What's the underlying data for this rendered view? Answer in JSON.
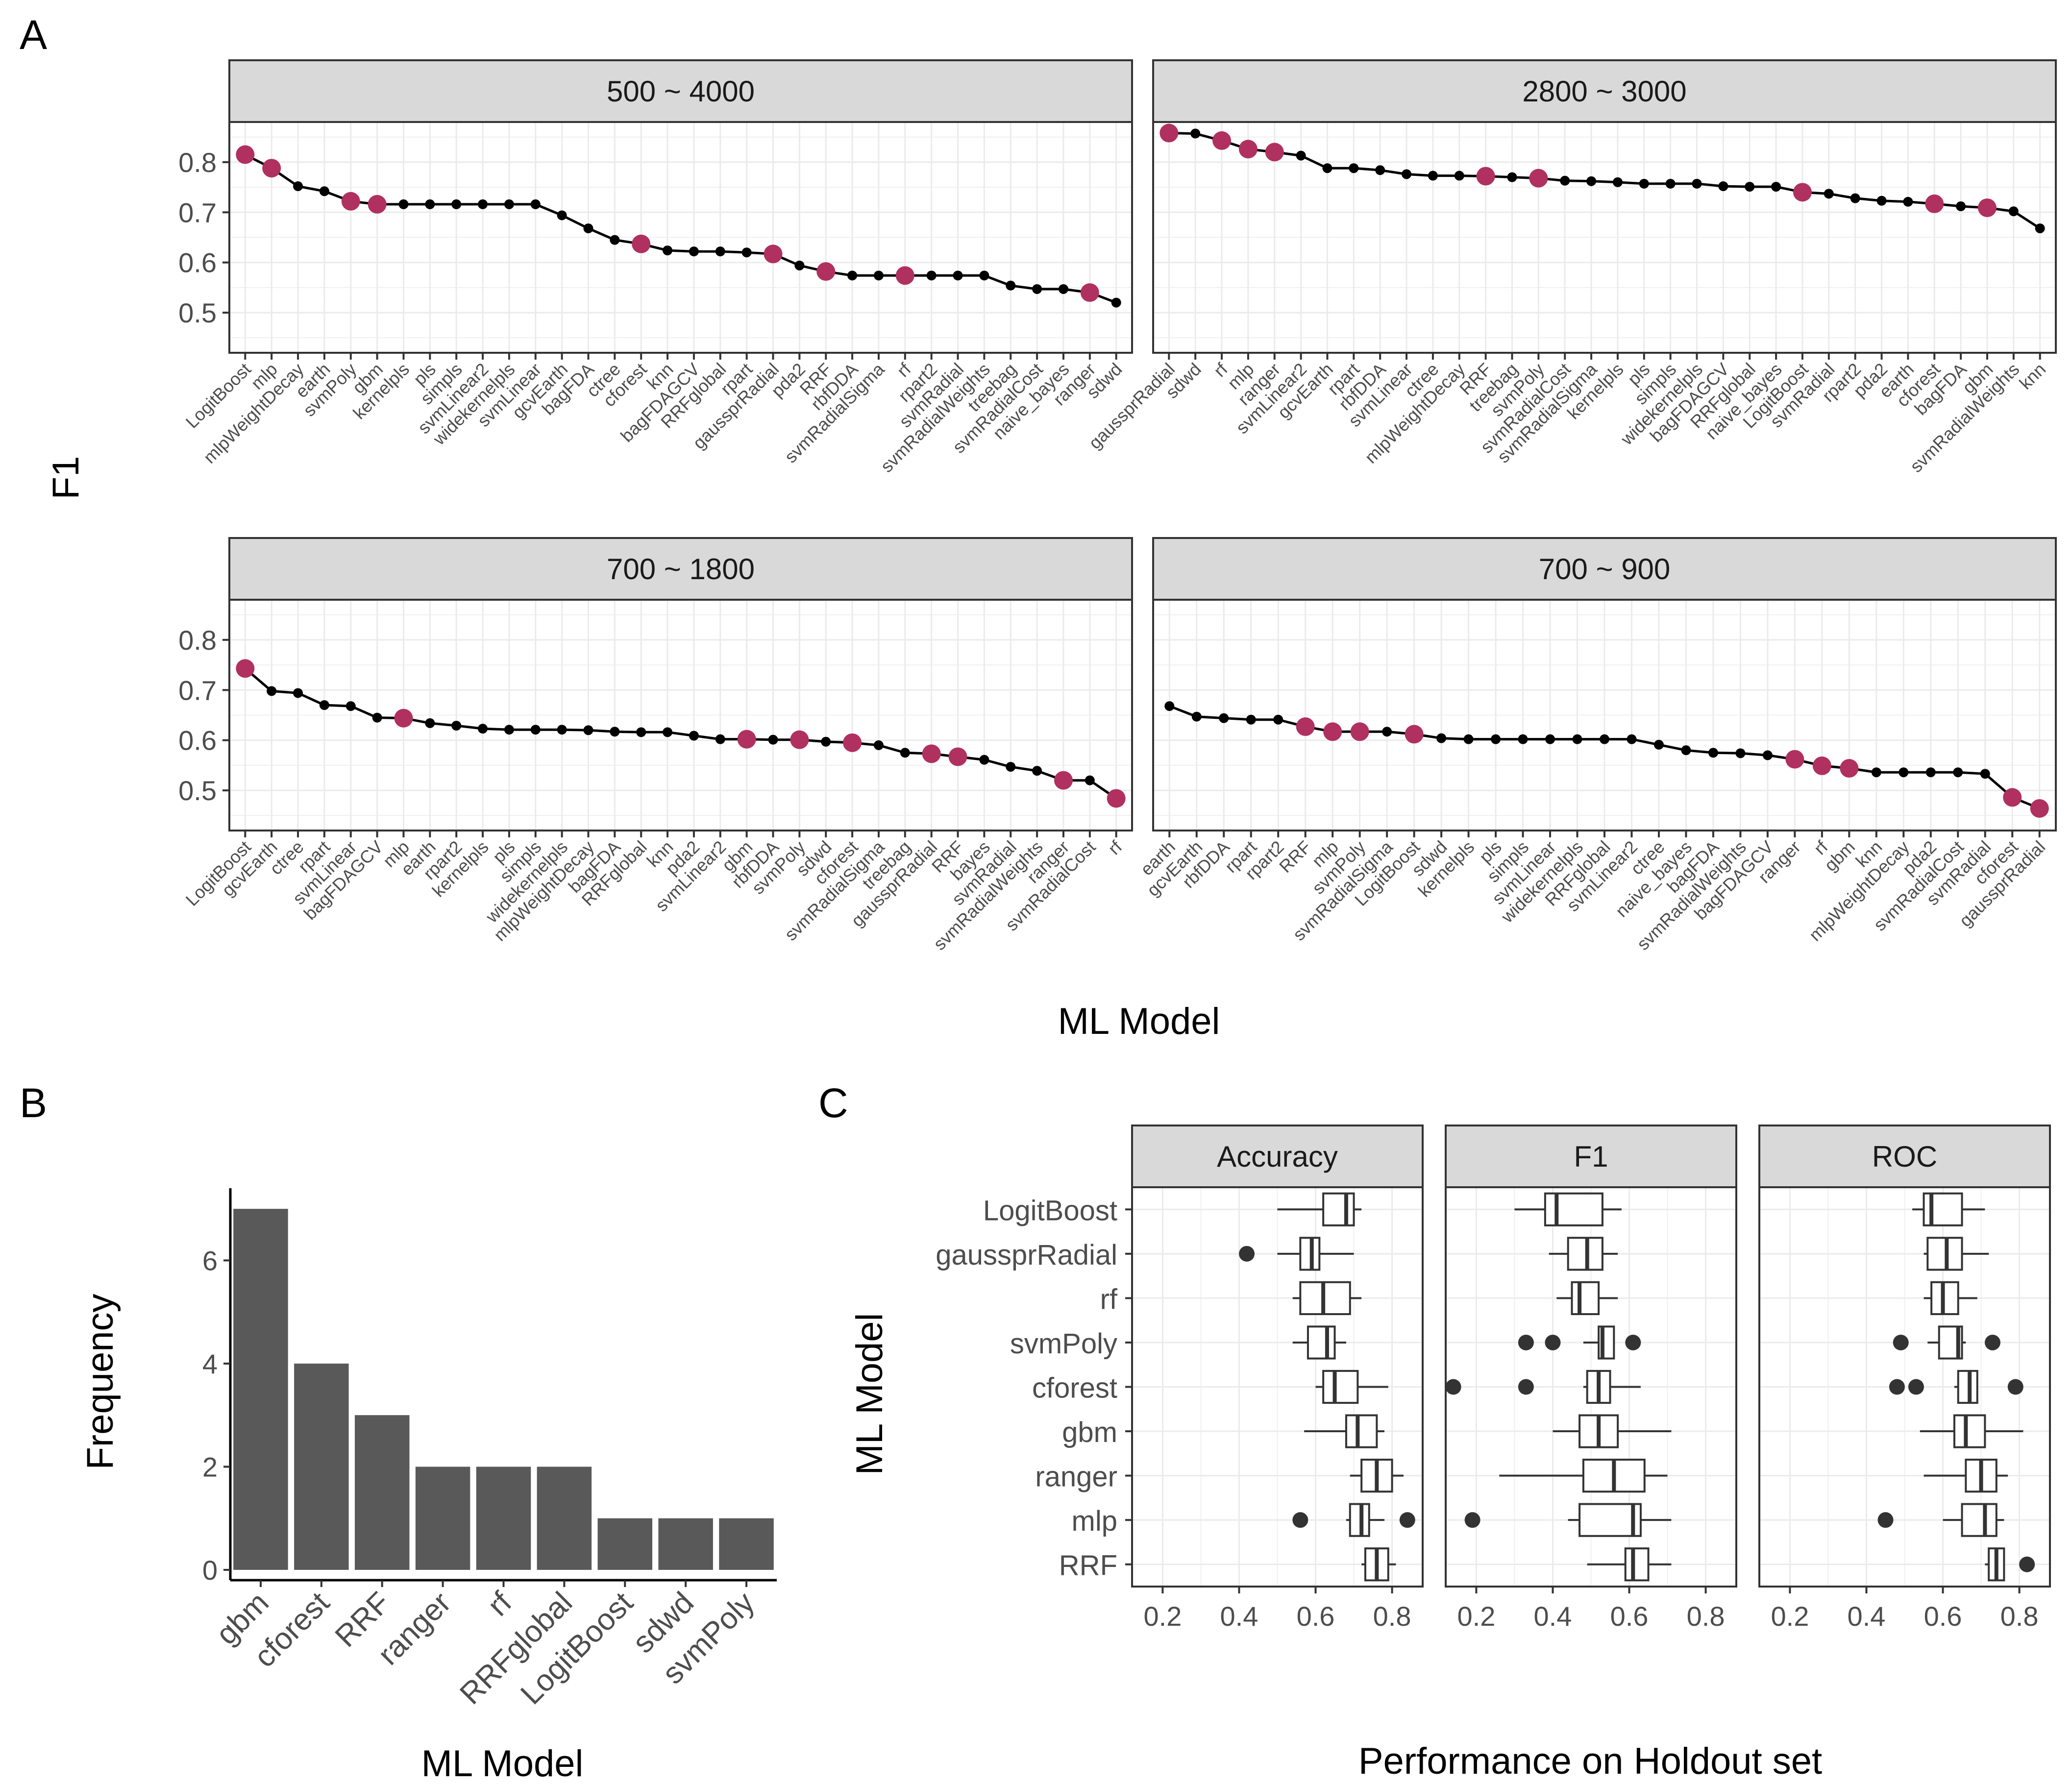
{
  "figure": {
    "panel_letters": [
      "A",
      "B",
      "C"
    ]
  },
  "chart_data": [
    {
      "id": "A",
      "type": "line",
      "ylabel": "F1",
      "xlabel": "ML Model",
      "ylim": [
        0.42,
        0.88
      ],
      "yticks": [
        0.5,
        0.6,
        0.7,
        0.8
      ],
      "highlight_color": "#B03060",
      "point_color": "#000000",
      "facets": [
        {
          "title": "500 ~ 4000",
          "models": [
            "LogitBoost",
            "mlp",
            "mlpWeightDecay",
            "earth",
            "svmPoly",
            "gbm",
            "kernelpls",
            "pls",
            "simpls",
            "svmLinear2",
            "widekernelpls",
            "svmLinear",
            "gcvEarth",
            "bagFDA",
            "ctree",
            "cforest",
            "knn",
            "bagFDAGCV",
            "RRFglobal",
            "rpart",
            "gaussprRadial",
            "pda2",
            "RRF",
            "rbfDDA",
            "svmRadialSigma",
            "rf",
            "rpart2",
            "svmRadial",
            "svmRadialWeights",
            "treebag",
            "svmRadialCost",
            "naive_bayes",
            "ranger",
            "sdwd"
          ],
          "values": [
            0.815,
            0.788,
            0.752,
            0.742,
            0.722,
            0.716,
            0.716,
            0.716,
            0.716,
            0.716,
            0.716,
            0.716,
            0.694,
            0.668,
            0.645,
            0.637,
            0.624,
            0.622,
            0.622,
            0.62,
            0.617,
            0.594,
            0.582,
            0.574,
            0.574,
            0.574,
            0.574,
            0.574,
            0.574,
            0.554,
            0.547,
            0.547,
            0.54,
            0.52
          ],
          "highlight": [
            true,
            true,
            false,
            false,
            true,
            true,
            false,
            false,
            false,
            false,
            false,
            false,
            false,
            false,
            false,
            true,
            false,
            false,
            false,
            false,
            true,
            false,
            true,
            false,
            false,
            true,
            false,
            false,
            false,
            false,
            false,
            false,
            true,
            false
          ]
        },
        {
          "title": "2800 ~ 3000",
          "models": [
            "gaussprRadial",
            "sdwd",
            "rf",
            "mlp",
            "ranger",
            "svmLinear2",
            "gcvEarth",
            "rpart",
            "rbfDDA",
            "svmLinear",
            "ctree",
            "mlpWeightDecay",
            "RRF",
            "treebag",
            "svmPoly",
            "svmRadialCost",
            "svmRadialSigma",
            "kernelpls",
            "pls",
            "simpls",
            "widekernelpls",
            "bagFDAGCV",
            "RRFglobal",
            "naive_bayes",
            "LogitBoost",
            "svmRadial",
            "rpart2",
            "pda2",
            "earth",
            "cforest",
            "bagFDA",
            "gbm",
            "svmRadialWeights",
            "knn"
          ],
          "values": [
            0.858,
            0.857,
            0.843,
            0.826,
            0.82,
            0.813,
            0.788,
            0.788,
            0.784,
            0.776,
            0.773,
            0.773,
            0.772,
            0.77,
            0.768,
            0.763,
            0.762,
            0.76,
            0.757,
            0.757,
            0.757,
            0.752,
            0.751,
            0.751,
            0.74,
            0.737,
            0.728,
            0.723,
            0.721,
            0.717,
            0.712,
            0.709,
            0.702,
            0.668
          ],
          "highlight": [
            true,
            false,
            true,
            true,
            true,
            false,
            false,
            false,
            false,
            false,
            false,
            false,
            true,
            false,
            true,
            false,
            false,
            false,
            false,
            false,
            false,
            false,
            false,
            false,
            true,
            false,
            false,
            false,
            false,
            true,
            false,
            true,
            false,
            false
          ]
        },
        {
          "title": "700 ~ 1800",
          "models": [
            "LogitBoost",
            "gcvEarth",
            "ctree",
            "rpart",
            "svmLinear",
            "bagFDAGCV",
            "mlp",
            "earth",
            "rpart2",
            "kernelpls",
            "pls",
            "simpls",
            "widekernelpls",
            "mlpWeightDecay",
            "bagFDA",
            "RRFglobal",
            "knn",
            "pda2",
            "svmLinear2",
            "gbm",
            "rbfDDA",
            "svmPoly",
            "sdwd",
            "cforest",
            "svmRadialSigma",
            "treebag",
            "gaussprRadial",
            "RRF",
            "bayes",
            "svmRadial",
            "svmRadialWeights",
            "ranger",
            "svmRadialCost",
            "rf"
          ],
          "values": [
            0.743,
            0.698,
            0.694,
            0.67,
            0.668,
            0.645,
            0.644,
            0.634,
            0.629,
            0.623,
            0.621,
            0.621,
            0.621,
            0.62,
            0.617,
            0.616,
            0.616,
            0.609,
            0.602,
            0.602,
            0.601,
            0.601,
            0.597,
            0.595,
            0.59,
            0.575,
            0.573,
            0.567,
            0.561,
            0.547,
            0.539,
            0.52,
            0.52,
            0.484
          ],
          "highlight": [
            true,
            false,
            false,
            false,
            false,
            false,
            true,
            false,
            false,
            false,
            false,
            false,
            false,
            false,
            false,
            false,
            false,
            false,
            false,
            true,
            false,
            true,
            false,
            true,
            false,
            false,
            true,
            true,
            false,
            false,
            false,
            true,
            false,
            true
          ]
        },
        {
          "title": "700 ~ 900",
          "models": [
            "earth",
            "gcvEarth",
            "rbfDDA",
            "rpart",
            "rpart2",
            "RRF",
            "mlp",
            "svmPoly",
            "svmRadialSigma",
            "LogitBoost",
            "sdwd",
            "kernelpls",
            "pls",
            "simpls",
            "svmLinear",
            "widekernelpls",
            "RRFglobal",
            "svmLinear2",
            "ctree",
            "naive_bayes",
            "bagFDA",
            "svmRadialWeights",
            "bagFDAGCV",
            "ranger",
            "rf",
            "gbm",
            "knn",
            "mlpWeightDecay",
            "pda2",
            "svmRadialCost",
            "svmRadial",
            "cforest",
            "gaussprRadial"
          ],
          "values": [
            0.668,
            0.647,
            0.644,
            0.641,
            0.641,
            0.627,
            0.617,
            0.617,
            0.617,
            0.612,
            0.604,
            0.602,
            0.602,
            0.602,
            0.602,
            0.602,
            0.602,
            0.602,
            0.591,
            0.58,
            0.575,
            0.574,
            0.57,
            0.562,
            0.549,
            0.544,
            0.536,
            0.536,
            0.536,
            0.536,
            0.533,
            0.486,
            0.464
          ],
          "highlight": [
            false,
            false,
            false,
            false,
            false,
            true,
            true,
            true,
            false,
            true,
            false,
            false,
            false,
            false,
            false,
            false,
            false,
            false,
            false,
            false,
            false,
            false,
            false,
            true,
            true,
            true,
            false,
            false,
            false,
            false,
            false,
            true,
            true
          ]
        }
      ]
    },
    {
      "id": "B",
      "type": "bar",
      "xlabel": "ML Model",
      "ylabel": "Frequency",
      "categories": [
        "gbm",
        "cforest",
        "RRF",
        "ranger",
        "rf",
        "RRFglobal",
        "LogitBoost",
        "sdwd",
        "svmPoly"
      ],
      "values": [
        7,
        4,
        3,
        2,
        2,
        2,
        1,
        1,
        1
      ],
      "ylim": [
        -0.2,
        7.4
      ],
      "yticks": [
        0,
        2,
        4,
        6
      ],
      "bar_color": "#595959"
    },
    {
      "id": "C",
      "type": "box",
      "xlabel": "Performance on Holdout set",
      "ylabel": "ML Model",
      "categories": [
        "LogitBoost",
        "gaussprRadial",
        "rf",
        "svmPoly",
        "cforest",
        "gbm",
        "ranger",
        "mlp",
        "RRF"
      ],
      "xlim": [
        0.12,
        0.88
      ],
      "xticks": [
        0.2,
        0.4,
        0.6,
        0.8
      ],
      "xtick_labels": [
        "0.2",
        "0.4",
        "0.6",
        "0.8"
      ],
      "facets": [
        {
          "title": "Accuracy",
          "boxes": [
            {
              "min": 0.5,
              "q1": 0.62,
              "median": 0.68,
              "q3": 0.7,
              "max": 0.72,
              "outliers": []
            },
            {
              "min": 0.5,
              "q1": 0.56,
              "median": 0.59,
              "q3": 0.61,
              "max": 0.7,
              "outliers": [
                0.42
              ]
            },
            {
              "min": 0.54,
              "q1": 0.56,
              "median": 0.62,
              "q3": 0.69,
              "max": 0.72,
              "outliers": []
            },
            {
              "min": 0.54,
              "q1": 0.58,
              "median": 0.63,
              "q3": 0.65,
              "max": 0.68,
              "outliers": []
            },
            {
              "min": 0.6,
              "q1": 0.62,
              "median": 0.65,
              "q3": 0.71,
              "max": 0.79,
              "outliers": []
            },
            {
              "min": 0.57,
              "q1": 0.68,
              "median": 0.71,
              "q3": 0.76,
              "max": 0.78,
              "outliers": []
            },
            {
              "min": 0.69,
              "q1": 0.72,
              "median": 0.76,
              "q3": 0.8,
              "max": 0.83,
              "outliers": []
            },
            {
              "min": 0.68,
              "q1": 0.69,
              "median": 0.72,
              "q3": 0.74,
              "max": 0.78,
              "outliers": [
                0.56,
                0.84
              ]
            },
            {
              "min": 0.72,
              "q1": 0.73,
              "median": 0.76,
              "q3": 0.79,
              "max": 0.81,
              "outliers": []
            }
          ]
        },
        {
          "title": "F1",
          "boxes": [
            {
              "min": 0.3,
              "q1": 0.38,
              "median": 0.41,
              "q3": 0.53,
              "max": 0.58,
              "outliers": []
            },
            {
              "min": 0.39,
              "q1": 0.44,
              "median": 0.49,
              "q3": 0.53,
              "max": 0.57,
              "outliers": []
            },
            {
              "min": 0.41,
              "q1": 0.45,
              "median": 0.47,
              "q3": 0.52,
              "max": 0.57,
              "outliers": []
            },
            {
              "min": 0.48,
              "q1": 0.52,
              "median": 0.53,
              "q3": 0.56,
              "max": 0.56,
              "outliers": [
                0.33,
                0.4,
                0.61
              ]
            },
            {
              "min": 0.48,
              "q1": 0.49,
              "median": 0.52,
              "q3": 0.55,
              "max": 0.63,
              "outliers": [
                0.14,
                0.33
              ]
            },
            {
              "min": 0.4,
              "q1": 0.47,
              "median": 0.52,
              "q3": 0.57,
              "max": 0.71,
              "outliers": []
            },
            {
              "min": 0.26,
              "q1": 0.48,
              "median": 0.56,
              "q3": 0.64,
              "max": 0.7,
              "outliers": []
            },
            {
              "min": 0.44,
              "q1": 0.47,
              "median": 0.61,
              "q3": 0.63,
              "max": 0.71,
              "outliers": [
                0.19
              ]
            },
            {
              "min": 0.49,
              "q1": 0.59,
              "median": 0.61,
              "q3": 0.65,
              "max": 0.71,
              "outliers": []
            }
          ]
        },
        {
          "title": "ROC",
          "boxes": [
            {
              "min": 0.52,
              "q1": 0.55,
              "median": 0.57,
              "q3": 0.65,
              "max": 0.71,
              "outliers": []
            },
            {
              "min": 0.55,
              "q1": 0.56,
              "median": 0.61,
              "q3": 0.65,
              "max": 0.72,
              "outliers": []
            },
            {
              "min": 0.55,
              "q1": 0.57,
              "median": 0.6,
              "q3": 0.64,
              "max": 0.69,
              "outliers": []
            },
            {
              "min": 0.56,
              "q1": 0.59,
              "median": 0.64,
              "q3": 0.65,
              "max": 0.66,
              "outliers": [
                0.49,
                0.73
              ]
            },
            {
              "min": 0.63,
              "q1": 0.64,
              "median": 0.67,
              "q3": 0.69,
              "max": 0.69,
              "outliers": [
                0.48,
                0.53,
                0.79
              ]
            },
            {
              "min": 0.54,
              "q1": 0.63,
              "median": 0.66,
              "q3": 0.71,
              "max": 0.81,
              "outliers": []
            },
            {
              "min": 0.55,
              "q1": 0.66,
              "median": 0.7,
              "q3": 0.74,
              "max": 0.77,
              "outliers": []
            },
            {
              "min": 0.6,
              "q1": 0.65,
              "median": 0.71,
              "q3": 0.74,
              "max": 0.76,
              "outliers": [
                0.45
              ]
            },
            {
              "min": 0.71,
              "q1": 0.72,
              "median": 0.74,
              "q3": 0.76,
              "max": 0.76,
              "outliers": [
                0.82
              ]
            }
          ]
        }
      ]
    }
  ]
}
